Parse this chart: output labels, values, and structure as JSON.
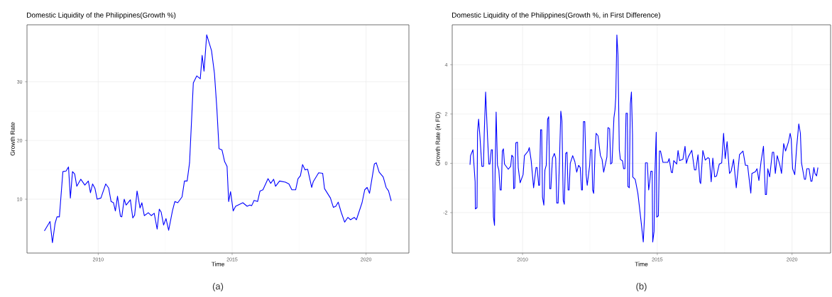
{
  "chart_data": [
    {
      "type": "line",
      "title": "Domestic Liquidity of the Philippines(Growth %)",
      "xlabel": "Time",
      "ylabel": "Growth Rate",
      "annotations": [
        "(a)"
      ],
      "xlim": [
        2007.34,
        2021.6
      ],
      "ylim": [
        0.83,
        39.7
      ],
      "xticks": [
        2010,
        2015,
        2020
      ],
      "yticks": [
        10,
        20,
        30
      ],
      "grid": true,
      "x": [
        2007.99,
        2008.2,
        2008.29,
        2008.39,
        2008.46,
        2008.55,
        2008.68,
        2008.8,
        2008.89,
        2008.96,
        2009.04,
        2009.12,
        2009.2,
        2009.35,
        2009.5,
        2009.63,
        2009.71,
        2009.79,
        2009.88,
        2009.96,
        2010.1,
        2010.28,
        2010.39,
        2010.48,
        2010.57,
        2010.64,
        2010.72,
        2010.83,
        2010.88,
        2010.97,
        2011.04,
        2011.2,
        2011.29,
        2011.36,
        2011.45,
        2011.56,
        2011.63,
        2011.72,
        2011.87,
        2011.98,
        2012.09,
        2012.2,
        2012.28,
        2012.35,
        2012.44,
        2012.53,
        2012.63,
        2012.77,
        2012.86,
        2012.97,
        2013.13,
        2013.22,
        2013.32,
        2013.41,
        2013.55,
        2013.68,
        2013.81,
        2013.88,
        2013.95,
        2014.05,
        2014.23,
        2014.34,
        2014.43,
        2014.51,
        2014.62,
        2014.72,
        2014.81,
        2014.87,
        2014.94,
        2015.04,
        2015.13,
        2015.4,
        2015.56,
        2015.66,
        2015.73,
        2015.82,
        2015.95,
        2016.04,
        2016.15,
        2016.34,
        2016.44,
        2016.55,
        2016.62,
        2016.77,
        2016.99,
        2017.12,
        2017.23,
        2017.37,
        2017.46,
        2017.55,
        2017.63,
        2017.72,
        2017.82,
        2017.97,
        2018.03,
        2018.23,
        2018.38,
        2018.45,
        2018.67,
        2018.78,
        2018.87,
        2018.96,
        2019.07,
        2019.2,
        2019.32,
        2019.42,
        2019.56,
        2019.64,
        2019.85,
        2019.95,
        2020.04,
        2020.13,
        2020.31,
        2020.38,
        2020.49,
        2020.64,
        2020.75,
        2020.84,
        2020.94
      ],
      "series": [
        {
          "color": "#0000ff",
          "values": [
            4.6,
            6.2,
            2.6,
            5.9,
            7.0,
            7.0,
            14.7,
            14.8,
            15.5,
            10.2,
            14.7,
            14.3,
            12.2,
            13.4,
            12.4,
            13.1,
            11.1,
            12.6,
            11.8,
            10.0,
            10.2,
            12.6,
            11.9,
            9.6,
            9.4,
            8.0,
            10.5,
            7.1,
            7.0,
            10.0,
            9.0,
            9.9,
            6.8,
            7.3,
            11.4,
            8.5,
            9.4,
            7.2,
            7.7,
            7.2,
            7.6,
            4.9,
            8.3,
            7.8,
            5.6,
            6.7,
            4.7,
            8.0,
            9.6,
            9.4,
            10.4,
            13.1,
            13.1,
            16.2,
            29.8,
            31.0,
            30.5,
            34.5,
            31.8,
            38.0,
            35.3,
            31.4,
            25.4,
            18.6,
            18.4,
            16.4,
            15.6,
            9.6,
            11.3,
            8.0,
            8.8,
            9.4,
            8.8,
            9.0,
            8.9,
            9.8,
            9.6,
            11.4,
            11.6,
            13.5,
            12.7,
            13.4,
            12.2,
            13.1,
            12.9,
            12.6,
            11.6,
            11.6,
            13.5,
            14.0,
            15.9,
            15.0,
            15.1,
            12.0,
            13.0,
            14.5,
            14.4,
            11.8,
            10.2,
            8.6,
            8.8,
            9.5,
            7.8,
            6.1,
            6.9,
            6.5,
            6.9,
            6.5,
            9.4,
            11.6,
            12.0,
            11.0,
            16.0,
            16.2,
            14.6,
            13.8,
            12.0,
            11.4,
            9.7
          ]
        }
      ]
    },
    {
      "type": "line",
      "title": "Domestic Liquidity of the Philippines(Growth %, in First Difference)",
      "xlabel": "Time",
      "ylabel": "Growth Rate (in FD)",
      "annotations": [
        "(b)"
      ],
      "xlim": [
        2007.39,
        2021.43
      ],
      "ylim": [
        -3.64,
        5.62
      ],
      "xticks": [
        2010,
        2015,
        2020
      ],
      "yticks": [
        -2,
        0,
        2,
        4
      ],
      "grid": true,
      "x": [
        2008.05,
        2008.07,
        2008.16,
        2008.24,
        2008.25,
        2008.31,
        2008.33,
        2008.37,
        2008.42,
        2008.49,
        2008.55,
        2008.58,
        2008.63,
        2008.7,
        2008.75,
        2008.79,
        2008.84,
        2008.88,
        2008.92,
        2008.96,
        2008.98,
        2009.02,
        2009.07,
        2009.12,
        2009.17,
        2009.21,
        2009.25,
        2009.29,
        2009.33,
        2009.47,
        2009.56,
        2009.6,
        2009.65,
        2009.67,
        2009.71,
        2009.75,
        2009.81,
        2009.84,
        2009.91,
        2010.02,
        2010.07,
        2010.21,
        2010.25,
        2010.32,
        2010.41,
        2010.5,
        2010.54,
        2010.6,
        2010.63,
        2010.67,
        2010.71,
        2010.74,
        2010.79,
        2010.83,
        2010.88,
        2010.93,
        2010.97,
        2011.01,
        2011.05,
        2011.11,
        2011.18,
        2011.23,
        2011.27,
        2011.32,
        2011.37,
        2011.42,
        2011.46,
        2011.51,
        2011.55,
        2011.6,
        2011.65,
        2011.69,
        2011.73,
        2011.77,
        2011.86,
        2011.94,
        2012.01,
        2012.08,
        2012.14,
        2012.19,
        2012.22,
        2012.26,
        2012.31,
        2012.36,
        2012.4,
        2012.49,
        2012.52,
        2012.57,
        2012.6,
        2012.64,
        2012.69,
        2012.73,
        2012.8,
        2012.89,
        2012.95,
        2013.01,
        2013.13,
        2013.17,
        2013.23,
        2013.27,
        2013.32,
        2013.39,
        2013.43,
        2013.46,
        2013.5,
        2013.54,
        2013.59,
        2013.63,
        2013.71,
        2013.75,
        2013.8,
        2013.84,
        2013.89,
        2013.91,
        2013.96,
        2014.0,
        2014.04,
        2014.08,
        2014.09,
        2014.18,
        2014.28,
        2014.4,
        2014.48,
        2014.53,
        2014.56,
        2014.63,
        2014.68,
        2014.72,
        2014.76,
        2014.81,
        2014.83,
        2014.88,
        2014.91,
        2014.96,
        2014.98,
        2015.04,
        2015.08,
        2015.12,
        2015.21,
        2015.39,
        2015.44,
        2015.52,
        2015.56,
        2015.61,
        2015.72,
        2015.77,
        2015.83,
        2015.95,
        2016.03,
        2016.08,
        2016.15,
        2016.28,
        2016.38,
        2016.43,
        2016.51,
        2016.58,
        2016.61,
        2016.69,
        2016.78,
        2016.88,
        2016.93,
        2017.0,
        2017.06,
        2017.13,
        2017.2,
        2017.3,
        2017.39,
        2017.46,
        2017.52,
        2017.59,
        2017.68,
        2017.74,
        2017.83,
        2017.93,
        2018.05,
        2018.18,
        2018.27,
        2018.35,
        2018.47,
        2018.51,
        2018.64,
        2018.7,
        2018.77,
        2018.85,
        2018.94,
        2019.01,
        2019.05,
        2019.1,
        2019.17,
        2019.27,
        2019.32,
        2019.38,
        2019.45,
        2019.55,
        2019.61,
        2019.69,
        2019.76,
        2019.87,
        2019.93,
        2019.97,
        2020.02,
        2020.1,
        2020.17,
        2020.25,
        2020.31,
        2020.35,
        2020.46,
        2020.5,
        2020.55,
        2020.63,
        2020.7,
        2020.74,
        2020.81,
        2020.85,
        2020.91,
        2020.96
      ],
      "series": [
        {
          "color": "#0000ff",
          "values": [
            -0.06,
            0.31,
            0.55,
            -0.75,
            -1.85,
            -1.8,
            1.26,
            1.79,
            1.07,
            -0.12,
            -0.12,
            1.26,
            2.89,
            1.07,
            -0.03,
            -0.03,
            0.55,
            0.55,
            -2.18,
            -2.52,
            -0.46,
            2.08,
            -0.08,
            -0.27,
            -1.08,
            -1.08,
            0.5,
            0.59,
            -0.03,
            -0.24,
            -0.12,
            0.33,
            0.26,
            -1.03,
            -0.99,
            0.83,
            0.86,
            -0.17,
            -0.79,
            -0.46,
            0.31,
            0.5,
            0.64,
            0.11,
            -0.99,
            -0.17,
            -0.17,
            -0.89,
            -0.89,
            1.36,
            1.36,
            -1.37,
            -1.7,
            -0.27,
            -0.08,
            1.79,
            1.89,
            -1.03,
            -1.03,
            0.21,
            0.4,
            0.21,
            -1.61,
            -1.61,
            0.11,
            2.12,
            1.74,
            -1.51,
            -1.66,
            0.4,
            0.45,
            -1.08,
            -1.08,
            0.0,
            0.31,
            0.07,
            -0.36,
            -0.08,
            -0.17,
            -1.08,
            -1.08,
            1.69,
            1.69,
            -0.46,
            -0.89,
            -0.08,
            0.55,
            0.55,
            -1.08,
            -1.22,
            0.45,
            1.22,
            1.12,
            0.31,
            0.16,
            -0.36,
            0.26,
            1.45,
            1.41,
            -0.03,
            0.02,
            1.84,
            2.17,
            2.7,
            5.21,
            4.42,
            0.55,
            0.16,
            0.1,
            -0.22,
            -0.22,
            2.03,
            2.03,
            -0.94,
            -0.99,
            2.41,
            2.89,
            1.17,
            -0.55,
            -0.65,
            -1.22,
            -2.37,
            -3.19,
            -2.09,
            0.02,
            0.02,
            -1.08,
            -0.75,
            -0.32,
            -0.32,
            -3.19,
            -2.76,
            -0.46,
            1.26,
            -2.18,
            -2.13,
            0.5,
            0.5,
            0.04,
            0.04,
            0.19,
            -0.36,
            -0.38,
            0.11,
            -0.03,
            0.52,
            0.11,
            0.16,
            0.69,
            0.0,
            0.26,
            0.53,
            -0.27,
            -0.27,
            0.35,
            -0.75,
            -0.82,
            0.52,
            0.13,
            0.23,
            0.19,
            -0.75,
            0.21,
            -0.55,
            -0.51,
            -0.03,
            0.02,
            1.22,
            0.19,
            0.88,
            -0.41,
            -0.32,
            0.16,
            -0.99,
            0.35,
            0.5,
            -0.08,
            -0.08,
            -1.21,
            -0.41,
            -0.34,
            -0.22,
            -0.7,
            0.07,
            0.69,
            -1.27,
            -1.27,
            -0.22,
            -0.55,
            0.45,
            0.45,
            -0.41,
            0.31,
            -0.08,
            -0.41,
            0.8,
            0.5,
            0.88,
            1.22,
            0.98,
            -0.22,
            -0.46,
            0.64,
            1.6,
            1.22,
            0.02,
            -0.65,
            -0.65,
            -0.22,
            -0.22,
            -0.73,
            -0.73,
            -0.17,
            -0.41,
            -0.51,
            -0.17
          ]
        }
      ]
    }
  ]
}
